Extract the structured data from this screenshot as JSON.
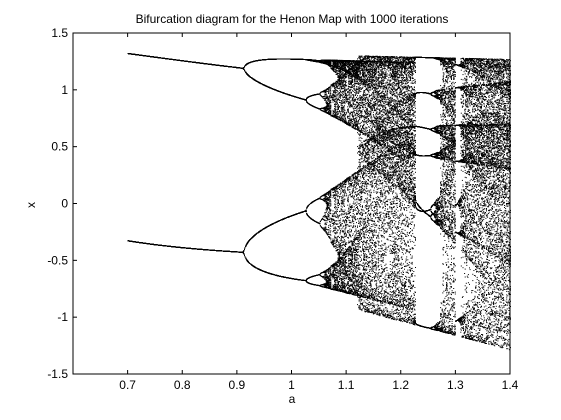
{
  "chart_data": {
    "type": "scatter",
    "title": "Bifurcation diagram for the Henon Map with 1000 iterations",
    "xlabel": "a",
    "ylabel": "x",
    "xlim": [
      0.6,
      1.4
    ],
    "ylim": [
      -1.5,
      1.5
    ],
    "xticks": [
      0.7,
      0.8,
      0.9,
      1,
      1.1,
      1.2,
      1.3,
      1.4
    ],
    "xtick_labels": [
      "0.7",
      "0.8",
      "0.9",
      "1",
      "1.1",
      "1.2",
      "1.3",
      "1.4"
    ],
    "yticks": [
      -1.5,
      -1,
      -0.5,
      0,
      0.5,
      1,
      1.5
    ],
    "ytick_labels": [
      "-1.5",
      "-1",
      "-0.5",
      "0",
      "0.5",
      "1",
      "1.5"
    ],
    "grid": false,
    "marker_color": "#000000",
    "series": [
      {
        "description": "period-1 upper branch",
        "x": [
          0.7,
          0.8,
          0.9,
          0.91
        ],
        "y": [
          1.33,
          1.27,
          1.21,
          1.2
        ]
      },
      {
        "description": "period-1 lower branch",
        "x": [
          0.7,
          0.8,
          0.9,
          0.91
        ],
        "y": [
          -0.33,
          -0.37,
          -0.41,
          -0.42
        ]
      },
      {
        "description": "period-2 region (0.91 to 1.05)",
        "x": [
          0.92,
          0.95,
          1.0,
          1.05,
          0.92,
          0.95,
          1.0,
          1.05,
          0.92,
          0.95,
          1.0,
          1.05,
          0.92,
          0.95,
          1.0,
          1.05
        ],
        "y": [
          1.24,
          1.27,
          1.28,
          1.28,
          1.15,
          1.05,
          0.93,
          0.87,
          -0.38,
          -0.24,
          -0.12,
          -0.05,
          -0.46,
          -0.55,
          -0.63,
          -0.68
        ]
      },
      {
        "description": "chaotic band",
        "x_range": [
          1.06,
          1.4
        ],
        "y_range": [
          -1.28,
          1.28
        ]
      }
    ]
  }
}
